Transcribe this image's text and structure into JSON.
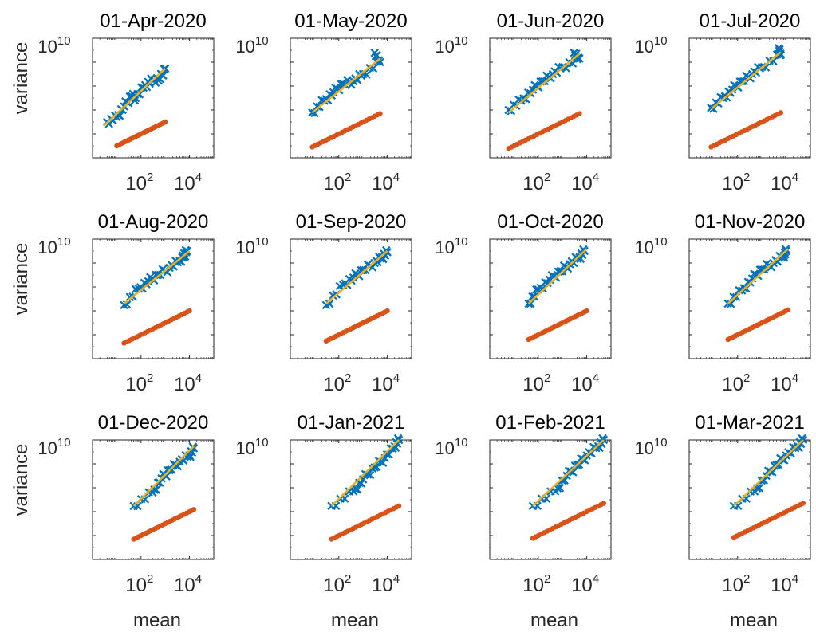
{
  "chart_data": {
    "type": "scatter",
    "xlabel": "mean",
    "ylabel": "variance",
    "xscale": "log",
    "yscale": "log",
    "xlim": [
      1,
      100000
    ],
    "ylim": [
      1,
      10000000000
    ],
    "xticks": [
      {
        "base": "10",
        "exp": "2"
      },
      {
        "base": "10",
        "exp": "4"
      }
    ],
    "yticks": [
      {
        "base": "10",
        "exp": "10"
      }
    ],
    "grid": false,
    "colors": {
      "observed": "#0072BD",
      "poisson": "#D95319",
      "fit": "#EDB120"
    },
    "series_markers": {
      "observed": "x",
      "poisson": "dot-line",
      "fit": "line"
    },
    "panels": [
      {
        "title": "01-Apr-2020",
        "observed": [
          [
            4,
            1000
          ],
          [
            10,
            2500
          ],
          [
            20,
            20000
          ],
          [
            40,
            150000
          ],
          [
            60,
            100000
          ],
          [
            150,
            1200000
          ],
          [
            300,
            3000000
          ],
          [
            600,
            4000000
          ],
          [
            1000,
            30000000
          ]
        ],
        "fit": [
          [
            3,
            500
          ],
          [
            1000,
            30000000
          ]
        ],
        "poisson": [
          [
            10,
            10
          ],
          [
            1000,
            1000
          ]
        ]
      },
      {
        "title": "01-May-2020",
        "observed": [
          [
            8,
            6000
          ],
          [
            25,
            60000
          ],
          [
            60,
            300000
          ],
          [
            150,
            1500000
          ],
          [
            400,
            2500000
          ],
          [
            1000,
            10000000
          ],
          [
            5000,
            100000000
          ],
          [
            3000,
            600000000
          ]
        ],
        "fit": [
          [
            8,
            6000
          ],
          [
            5000,
            200000000
          ]
        ],
        "poisson": [
          [
            8,
            8
          ],
          [
            5000,
            5000
          ]
        ]
      },
      {
        "title": "01-Jun-2020",
        "observed": [
          [
            6,
            10000
          ],
          [
            20,
            60000
          ],
          [
            60,
            500000
          ],
          [
            150,
            2500000
          ],
          [
            400,
            10000000
          ],
          [
            1000,
            40000000
          ],
          [
            5000,
            200000000
          ],
          [
            3000,
            600000000
          ]
        ],
        "fit": [
          [
            6,
            6000
          ],
          [
            5000,
            500000000
          ]
        ],
        "poisson": [
          [
            6,
            6
          ],
          [
            5000,
            5000
          ]
        ]
      },
      {
        "title": "01-Jul-2020",
        "observed": [
          [
            8,
            15000
          ],
          [
            25,
            100000
          ],
          [
            60,
            500000
          ],
          [
            150,
            2500000
          ],
          [
            400,
            10000000
          ],
          [
            1000,
            40000000
          ],
          [
            6000,
            400000000
          ],
          [
            5000,
            1500000000
          ]
        ],
        "fit": [
          [
            8,
            12000
          ],
          [
            6000,
            700000000
          ]
        ],
        "poisson": [
          [
            8,
            8
          ],
          [
            6000,
            6000
          ]
        ]
      },
      {
        "title": "01-Aug-2020",
        "observed": [
          [
            20,
            30000
          ],
          [
            80,
            700000
          ],
          [
            200,
            3000000
          ],
          [
            500,
            10000000
          ],
          [
            1500,
            40000000
          ],
          [
            4000,
            150000000
          ],
          [
            8000,
            1000000000
          ],
          [
            5000,
            300000000
          ]
        ],
        "fit": [
          [
            20,
            40000
          ],
          [
            10000,
            1000000000
          ]
        ],
        "poisson": [
          [
            20,
            20
          ],
          [
            10000,
            10000
          ]
        ]
      },
      {
        "title": "01-Sep-2020",
        "observed": [
          [
            30,
            30000
          ],
          [
            150,
            1500000
          ],
          [
            400,
            6000000
          ],
          [
            1000,
            25000000
          ],
          [
            3000,
            100000000
          ],
          [
            6000,
            300000000
          ],
          [
            10000,
            800000000
          ]
        ],
        "fit": [
          [
            30,
            40000
          ],
          [
            10000,
            1000000000
          ]
        ],
        "poisson": [
          [
            30,
            30
          ],
          [
            10000,
            10000
          ]
        ]
      },
      {
        "title": "01-Oct-2020",
        "observed": [
          [
            40,
            40000
          ],
          [
            100,
            600000
          ],
          [
            300,
            4000000
          ],
          [
            800,
            20000000
          ],
          [
            2000,
            80000000
          ],
          [
            5000,
            300000000
          ],
          [
            8000,
            1000000000
          ]
        ],
        "fit": [
          [
            40,
            40000
          ],
          [
            10000,
            1500000000
          ]
        ],
        "poisson": [
          [
            40,
            40
          ],
          [
            10000,
            10000
          ]
        ]
      },
      {
        "title": "01-Nov-2020",
        "observed": [
          [
            40,
            40000
          ],
          [
            150,
            500000
          ],
          [
            400,
            5000000
          ],
          [
            1000,
            30000000
          ],
          [
            3000,
            100000000
          ],
          [
            8000,
            400000000
          ],
          [
            10000,
            1000000000
          ]
        ],
        "fit": [
          [
            40,
            40000
          ],
          [
            12000,
            1500000000
          ]
        ],
        "poisson": [
          [
            40,
            40
          ],
          [
            12000,
            12000
          ]
        ]
      },
      {
        "title": "01-Dec-2020",
        "observed": [
          [
            50,
            30000
          ],
          [
            300,
            400000
          ],
          [
            700,
            6000000
          ],
          [
            1500,
            30000000
          ],
          [
            4000,
            150000000
          ],
          [
            10000,
            500000000
          ],
          [
            15000,
            2000000000
          ]
        ],
        "fit": [
          [
            50,
            30000
          ],
          [
            15000,
            3000000000
          ]
        ],
        "poisson": [
          [
            50,
            50
          ],
          [
            15000,
            15000
          ]
        ]
      },
      {
        "title": "01-Jan-2021",
        "observed": [
          [
            50,
            30000
          ],
          [
            400,
            500000
          ],
          [
            1000,
            5000000
          ],
          [
            3000,
            50000000
          ],
          [
            8000,
            300000000
          ],
          [
            20000,
            3000000000
          ],
          [
            30000,
            10000000000
          ]
        ],
        "fit": [
          [
            50,
            30000
          ],
          [
            30000,
            10000000000
          ]
        ],
        "poisson": [
          [
            50,
            50
          ],
          [
            30000,
            30000
          ]
        ]
      },
      {
        "title": "01-Feb-2021",
        "observed": [
          [
            60,
            30000
          ],
          [
            500,
            500000
          ],
          [
            1500,
            10000000
          ],
          [
            4000,
            80000000
          ],
          [
            10000,
            500000000
          ],
          [
            30000,
            3000000000
          ],
          [
            50000,
            10000000000
          ]
        ],
        "fit": [
          [
            60,
            30000
          ],
          [
            50000,
            10000000000
          ]
        ],
        "poisson": [
          [
            60,
            60
          ],
          [
            50000,
            50000
          ]
        ]
      },
      {
        "title": "01-Mar-2021",
        "observed": [
          [
            70,
            30000
          ],
          [
            500,
            500000
          ],
          [
            1500,
            10000000
          ],
          [
            4000,
            80000000
          ],
          [
            10000,
            500000000
          ],
          [
            30000,
            3000000000
          ],
          [
            50000,
            10000000000
          ]
        ],
        "fit": [
          [
            70,
            30000
          ],
          [
            50000,
            10000000000
          ]
        ],
        "poisson": [
          [
            70,
            70
          ],
          [
            50000,
            50000
          ]
        ]
      }
    ]
  }
}
